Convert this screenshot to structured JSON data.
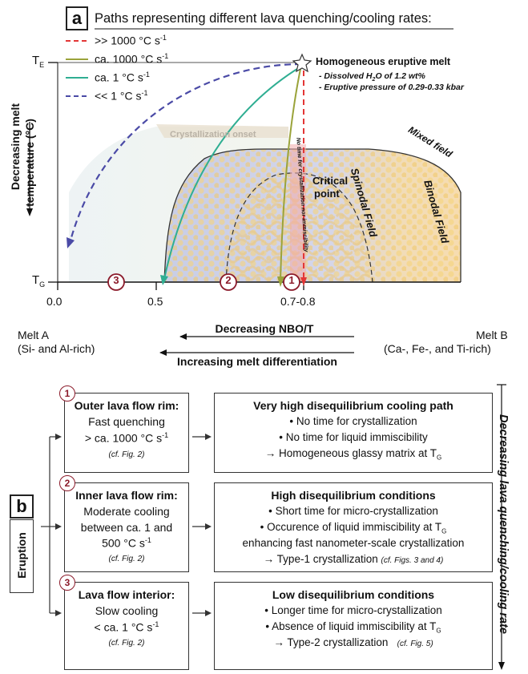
{
  "panel_a": {
    "label": "a",
    "legend": {
      "title": "Paths representing different lava quenching/cooling rates:",
      "items": [
        {
          "label": ">> 1000 °C s",
          "sup": "-1",
          "color": "#e33636",
          "style": "dashed"
        },
        {
          "label": "ca. 1000 °C s",
          "sup": "-1",
          "color": "#9aa33a",
          "style": "solid"
        },
        {
          "label": "ca. 1 °C s",
          "sup": "-1",
          "color": "#2fae92",
          "style": "solid"
        },
        {
          "label": "<< 1 °C s",
          "sup": "-1",
          "color": "#4a4aa6",
          "style": "dashed"
        }
      ]
    },
    "y_axis": {
      "label_line1": "Decreasing melt",
      "label_line2": "temperature (°C)"
    },
    "te_label": "T",
    "te_sub": "E",
    "tg_label": "T",
    "tg_sub": "G",
    "x_ticks": [
      "0.0",
      "0.5",
      "0.7-0.8"
    ],
    "annotations": {
      "star_title": "Homogeneous eruptive melt",
      "star_line1": "- Dissolved H",
      "star_line1_sub": "2",
      "star_line1_rest": "O of 1.2 wt%",
      "star_line2": "- Eruptive pressure of 0.29-0.33 kbar",
      "crystallization_onset": "Crystallization onset",
      "mixed_field": "Mixed field",
      "critical_point_1": "Critical",
      "critical_point_2": "point",
      "spinodal": "Spinodal Field",
      "binodal": "Binodal Field",
      "no_time": "No time for crystallization nor immiscibility"
    },
    "markers": [
      "3",
      "2",
      "1"
    ],
    "x_axis": {
      "melt_a": "Melt A",
      "melt_a_desc": "(Si- and Al-rich)",
      "melt_b": "Melt B",
      "melt_b_desc": "(Ca-, Fe-, and Ti-rich)",
      "nbo_label": "Decreasing NBO/T",
      "diff_label": "Increasing melt differentiation"
    },
    "colors": {
      "red": "#e33636",
      "olive": "#9aa33a",
      "teal": "#2fae92",
      "navy": "#4a4aa6",
      "marker": "#8b1a2a"
    }
  },
  "panel_b": {
    "label": "b",
    "eruption": "Eruption",
    "side_label": "Decreasing lava quenching/cooling rate",
    "rows": [
      {
        "num": "1",
        "left_title": "Outer lava flow rim:",
        "left_l1": "Fast quenching",
        "left_l2": "> ca. 1000 °C s",
        "left_l2_sup": "-1",
        "left_l3": "",
        "left_cf": "(cf. Fig. 2)",
        "right_title": "Very high disequilibrium cooling path",
        "right_l1": "• No time for crystallization",
        "right_l2": "• No time for liquid immiscibility",
        "right_l3": "→ Homogeneous glassy matrix at T",
        "right_l3_sub": "G",
        "right_l4": ""
      },
      {
        "num": "2",
        "left_title": "Inner lava flow rim:",
        "left_l1": "Moderate cooling",
        "left_l2": "between ca. 1 and",
        "left_l2_sup": "",
        "left_l3": "500 °C s",
        "left_l3_sup": "-1",
        "left_cf": "(cf. Fig. 2)",
        "right_title": "High disequilibrium conditions",
        "right_l1": "• Short time for micro-crystallization",
        "right_l2": "• Occurence of liquid immiscibility at T",
        "right_l2_sub": "G",
        "right_l3": "enhancing fast nanometer-scale crystallization",
        "right_l4": "→ Type-1 crystallization",
        "right_l4_cf": "(cf. Figs. 3 and 4)"
      },
      {
        "num": "3",
        "left_title": "Lava flow interior:",
        "left_l1": "Slow cooling",
        "left_l2": "< ca. 1 °C s",
        "left_l2_sup": "-1",
        "left_l3": "",
        "left_cf": "(cf. Fig. 2)",
        "right_title": "Low disequilibrium conditions",
        "right_l1": "• Longer time for micro-crystallization",
        "right_l2": "• Absence of liquid immiscibility at T",
        "right_l2_sub": "G",
        "right_l3": "→ Type-2 crystallization",
        "right_l3_cf": "(cf. Fig. 5)",
        "right_l4": ""
      }
    ]
  }
}
